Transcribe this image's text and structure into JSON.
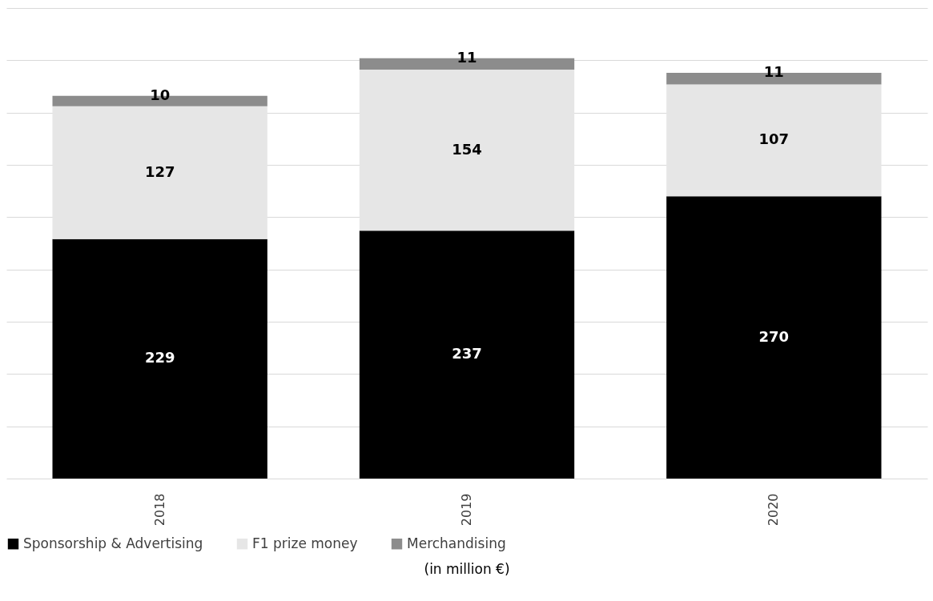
{
  "chart_data": {
    "type": "bar",
    "stacked": true,
    "categories": [
      "2018",
      "2019",
      "2020"
    ],
    "series": [
      {
        "name": "Sponsorship & Advertising",
        "color": "#000000",
        "values": [
          229,
          237,
          270
        ]
      },
      {
        "name": "F1 prize money",
        "color": "#e6e6e6",
        "values": [
          127,
          154,
          107
        ]
      },
      {
        "name": "Merchandising",
        "color": "#8c8c8c",
        "values": [
          10,
          11,
          11
        ]
      }
    ],
    "ylim": [
      0,
      450
    ],
    "yticks": [
      {
        "value": 0,
        "label": null
      },
      {
        "value": 50,
        "label": null
      },
      {
        "value": 100,
        "label": null
      },
      {
        "value": 150,
        "label": null
      },
      {
        "value": 200,
        "label": null
      },
      {
        "value": 250,
        "label": null
      },
      {
        "value": 300,
        "label": null
      },
      {
        "value": 350,
        "label": null
      },
      {
        "value": 400,
        "label": null
      },
      {
        "value": 450,
        "label": null
      }
    ],
    "tick_labels": "x",
    "grid": "y",
    "legend": "bottom",
    "data_labels": true,
    "annotations": [
      "(in million €)"
    ]
  }
}
